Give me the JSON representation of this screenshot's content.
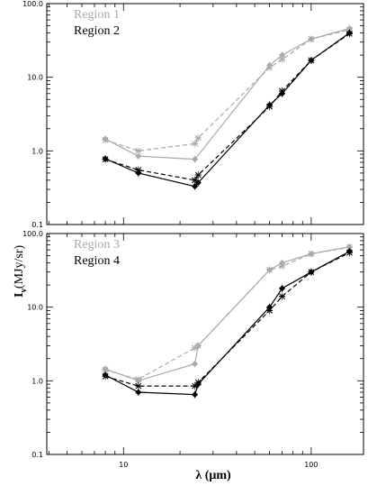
{
  "chart_data": {
    "type": "line",
    "xlabel": "λ (μm)",
    "ylabel": "I",
    "ylabel_sub": "ν",
    "ylabel_unit": "(MJy/sr)",
    "xscale": "log",
    "yscale": "log",
    "xlim": [
      3.9,
      190
    ],
    "ylim": [
      0.1,
      100
    ],
    "x_ticks": [
      10,
      100
    ],
    "x_tick_labels": [
      "10",
      "100"
    ],
    "y_ticks": [
      0.1,
      1,
      10,
      100
    ],
    "y_tick_labels": [
      "0.1",
      "1.0",
      "10.0",
      "100.0"
    ],
    "panels": [
      {
        "legend_placement": "top-left",
        "series": [
          {
            "name": "Region 1",
            "color": "#aaaaaa",
            "dash": "solid",
            "marker": "diamond",
            "x": [
              8,
              12,
              24,
              60,
              70,
              100,
              160
            ],
            "values": [
              1.45,
              0.85,
              0.77,
              14.5,
              20,
              33,
              46
            ]
          },
          {
            "name": "",
            "color": "#aaaaaa",
            "dash": "dashed",
            "marker": "cross",
            "x": [
              8,
              12,
              24,
              25,
              60,
              70,
              100,
              160
            ],
            "values": [
              1.4,
              1.0,
              1.25,
              1.5,
              13.5,
              17.5,
              33,
              44
            ]
          },
          {
            "name": "Region 2",
            "color": "#000000",
            "dash": "solid",
            "marker": "diamond",
            "x": [
              8,
              12,
              24,
              25,
              60,
              70,
              100,
              160
            ],
            "values": [
              0.78,
              0.5,
              0.33,
              0.37,
              4.2,
              6.0,
              17,
              40
            ]
          },
          {
            "name": "",
            "color": "#000000",
            "dash": "dashed",
            "marker": "cross",
            "x": [
              8,
              12,
              24,
              25,
              60,
              70,
              100,
              160
            ],
            "values": [
              0.77,
              0.55,
              0.4,
              0.47,
              4.0,
              6.5,
              17,
              39
            ]
          }
        ]
      },
      {
        "legend_placement": "top-left",
        "series": [
          {
            "name": "Region 3",
            "color": "#aaaaaa",
            "dash": "solid",
            "marker": "diamond",
            "x": [
              8,
              12,
              24,
              25,
              60,
              70,
              100,
              160
            ],
            "values": [
              1.45,
              1.0,
              1.7,
              3.0,
              32,
              40,
              53,
              66
            ]
          },
          {
            "name": "",
            "color": "#aaaaaa",
            "dash": "dashed",
            "marker": "cross",
            "x": [
              8,
              12,
              24,
              25,
              60,
              70,
              100,
              160
            ],
            "values": [
              1.4,
              1.05,
              2.8,
              3.0,
              32,
              36,
              53,
              65
            ]
          },
          {
            "name": "Region 4",
            "color": "#000000",
            "dash": "solid",
            "marker": "diamond",
            "x": [
              8,
              12,
              24,
              25,
              60,
              70,
              100,
              160
            ],
            "values": [
              1.2,
              0.7,
              0.65,
              0.9,
              10,
              18,
              30,
              57
            ]
          },
          {
            "name": "",
            "color": "#000000",
            "dash": "dashed",
            "marker": "cross",
            "x": [
              8,
              12,
              24,
              25,
              60,
              70,
              100,
              160
            ],
            "values": [
              1.15,
              0.85,
              0.85,
              0.95,
              9,
              14,
              30,
              55
            ]
          }
        ]
      }
    ]
  }
}
